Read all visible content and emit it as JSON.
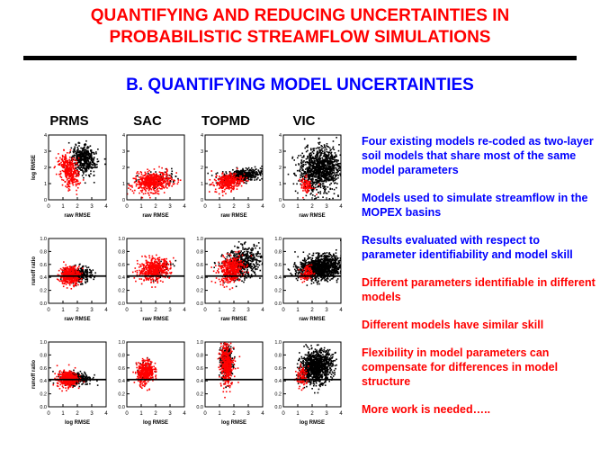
{
  "slide": {
    "title_line1": "QUANTIFYING AND REDUCING UNCERTAINTIES IN",
    "title_line2": "PROBABILISTIC STREAMFLOW SIMULATIONS",
    "subtitle": "B.  QUANTIFYING MODEL UNCERTAINTIES"
  },
  "bullets": [
    {
      "text": "Four existing models re-coded as two-layer soil models that share most of the same model parameters",
      "color": "#0000ff"
    },
    {
      "text": "Models used to simulate streamflow in the MOPEX basins",
      "color": "#0000ff"
    },
    {
      "text": "Results evaluated with respect to parameter identifiability and model skill",
      "color": "#0000ff"
    },
    {
      "text": "Different parameters identifiable in different models",
      "color": "#ff0000"
    },
    {
      "text": "Different models have similar skill",
      "color": "#ff0000"
    },
    {
      "text": "Flexibility in model parameters can compensate for differences in model structure",
      "color": "#ff0000"
    },
    {
      "text": "More work is needed…..",
      "color": "#ff0000"
    }
  ],
  "chart_data": {
    "type": "scatter",
    "models": [
      "PRMS",
      "SAC",
      "TOPMD",
      "VIC"
    ],
    "rows": [
      {
        "xlabel": "raw RMSE",
        "ylabel": "log RMSE",
        "xlim": [
          0,
          4
        ],
        "ylim": [
          0,
          4
        ],
        "yticks": [
          "0",
          "1",
          "2",
          "3",
          "4"
        ],
        "hline": null
      },
      {
        "xlabel": "raw RMSE",
        "ylabel": "runoff ratio",
        "xlim": [
          0,
          4
        ],
        "ylim": [
          0,
          1.0
        ],
        "yticks": [
          "0.0",
          "0.2",
          "0.4",
          "0.6",
          "0.8",
          "1.0"
        ],
        "hline": 0.42
      },
      {
        "xlabel": "log RMSE",
        "ylabel": "runoff ratio",
        "xlim": [
          0,
          4
        ],
        "ylim": [
          0,
          1.0
        ],
        "yticks": [
          "0.0",
          "0.2",
          "0.4",
          "0.6",
          "0.8",
          "1.0"
        ],
        "hline": 0.42
      }
    ],
    "xticks": [
      "0",
      "1",
      "2",
      "3",
      "4"
    ],
    "series_colors": {
      "black": "#000000",
      "red": "#ff0000"
    },
    "clouds": [
      [
        {
          "black": {
            "cx": 2.5,
            "cy": 2.5,
            "sx": 0.4,
            "sy": 0.45,
            "rot": 0.7,
            "n": 450
          },
          "red": {
            "cx": 1.4,
            "cy": 1.8,
            "sx": 0.3,
            "sy": 0.55,
            "rot": 0.4,
            "n": 350
          }
        },
        {
          "black": {
            "cx": 2.2,
            "cy": 1.3,
            "sx": 0.7,
            "sy": 0.25,
            "rot": 0.12,
            "n": 80
          },
          "red": {
            "cx": 1.8,
            "cy": 1.1,
            "sx": 0.65,
            "sy": 0.3,
            "rot": 0.12,
            "n": 500
          }
        },
        {
          "black": {
            "cx": 2.6,
            "cy": 1.5,
            "sx": 0.7,
            "sy": 0.2,
            "rot": 0.12,
            "n": 450
          },
          "red": {
            "cx": 1.6,
            "cy": 1.1,
            "sx": 0.5,
            "sy": 0.25,
            "rot": 0.2,
            "n": 300
          }
        },
        {
          "black": {
            "cx": 2.6,
            "cy": 1.9,
            "sx": 0.75,
            "sy": 0.65,
            "rot": 0.4,
            "n": 1100
          },
          "red": {
            "cx": 1.6,
            "cy": 0.9,
            "sx": 0.2,
            "sy": 0.25,
            "rot": 0.3,
            "n": 90
          }
        }
      ],
      [
        {
          "black": {
            "cx": 2.1,
            "cy": 0.44,
            "sx": 0.45,
            "sy": 0.06,
            "rot": 0.0,
            "n": 300
          },
          "red": {
            "cx": 1.5,
            "cy": 0.43,
            "sx": 0.35,
            "sy": 0.07,
            "rot": 0.05,
            "n": 400
          }
        },
        {
          "black": {
            "cx": 2.2,
            "cy": 0.52,
            "sx": 0.5,
            "sy": 0.08,
            "rot": 0.1,
            "n": 60
          },
          "red": {
            "cx": 1.9,
            "cy": 0.52,
            "sx": 0.55,
            "sy": 0.08,
            "rot": 0.12,
            "n": 500
          }
        },
        {
          "black": {
            "cx": 2.6,
            "cy": 0.62,
            "sx": 0.65,
            "sy": 0.12,
            "rot": 0.2,
            "n": 550
          },
          "red": {
            "cx": 1.8,
            "cy": 0.52,
            "sx": 0.45,
            "sy": 0.1,
            "rot": 0.25,
            "n": 400
          }
        },
        {
          "black": {
            "cx": 2.6,
            "cy": 0.55,
            "sx": 0.75,
            "sy": 0.09,
            "rot": 0.1,
            "n": 1200
          },
          "red": {
            "cx": 1.6,
            "cy": 0.45,
            "sx": 0.2,
            "sy": 0.06,
            "rot": 0.2,
            "n": 100
          }
        }
      ],
      [
        {
          "black": {
            "cx": 2.0,
            "cy": 0.44,
            "sx": 0.5,
            "sy": 0.05,
            "rot": 0.0,
            "n": 300
          },
          "red": {
            "cx": 1.3,
            "cy": 0.43,
            "sx": 0.35,
            "sy": 0.06,
            "rot": 0.05,
            "n": 400
          }
        },
        {
          "black": {
            "cx": 1.3,
            "cy": 0.55,
            "sx": 0.3,
            "sy": 0.08,
            "rot": 0.3,
            "n": 40
          },
          "red": {
            "cx": 1.3,
            "cy": 0.53,
            "sx": 0.3,
            "sy": 0.09,
            "rot": 0.35,
            "n": 400
          }
        },
        {
          "black": {
            "cx": 1.5,
            "cy": 0.7,
            "sx": 0.35,
            "sy": 0.13,
            "rot": 0.9,
            "n": 250
          },
          "red": {
            "cx": 1.5,
            "cy": 0.65,
            "sx": 0.3,
            "sy": 0.14,
            "rot": 0.9,
            "n": 400
          }
        },
        {
          "black": {
            "cx": 2.3,
            "cy": 0.62,
            "sx": 0.55,
            "sy": 0.12,
            "rot": 0.15,
            "n": 1100
          },
          "red": {
            "cx": 1.3,
            "cy": 0.45,
            "sx": 0.2,
            "sy": 0.08,
            "rot": 0.3,
            "n": 100
          }
        }
      ]
    ]
  }
}
